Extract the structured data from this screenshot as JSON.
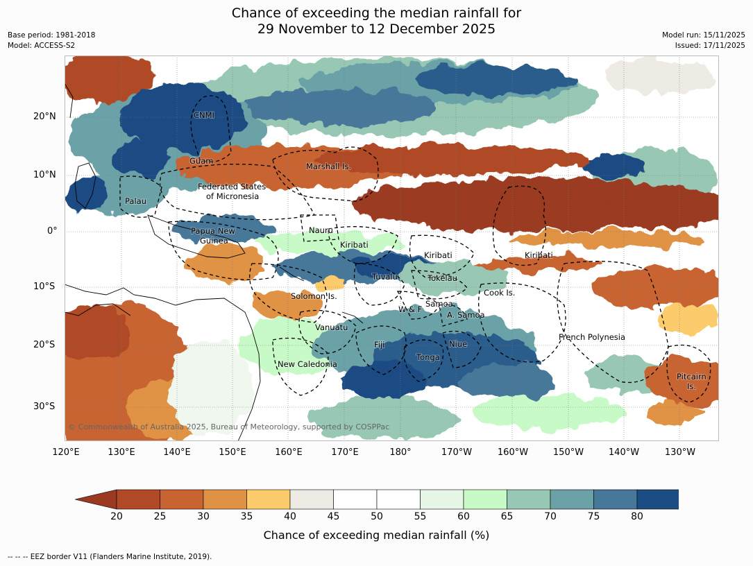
{
  "title": {
    "line1": "Chance of exceeding the median rainfall for",
    "line2": "29 November to 12 December 2025"
  },
  "meta": {
    "base_period": "Base period: 1981-2018",
    "model": "Model: ACCESS-S2",
    "model_run": "Model run: 15/11/2025",
    "issued": "Issued: 17/11/2025"
  },
  "axes": {
    "y_labels": [
      "20°N",
      "10°N",
      "0°",
      "10°S",
      "20°S",
      "30°S"
    ],
    "x_labels": [
      "120°E",
      "130°E",
      "140°E",
      "150°E",
      "160°E",
      "170°E",
      "180°",
      "170°W",
      "160°W",
      "150°W",
      "140°W",
      "130°W"
    ]
  },
  "places": {
    "cnmi": "CNMI",
    "guam": "Guam",
    "marshall": "Marshall Is.",
    "fsm1": "Federated States",
    "fsm2": "of Micronesia",
    "palau": "Palau",
    "nauru": "Nauru",
    "png1": "Papua New",
    "png2": "Guinea",
    "kiribati_w": "Kiribati",
    "kiribati_c": "Kiribati",
    "kiribati_e": "Kiribati",
    "tuvalu": "Tuvalu",
    "tokelau": "Tokelau",
    "solomon": "Solomon Is.",
    "wf": "W & F",
    "samoa": "Samoa",
    "asamoa": "A. Samoa",
    "cook": "Cook Is.",
    "vanuatu": "Vanuatu",
    "fiji": "Fiji",
    "niue": "Niue",
    "tonga": "Tonga",
    "french_polynesia": "French Polynesia",
    "new_caledonia": "New Caledonia",
    "pitcairn1": "Pitcairn",
    "pitcairn2": "Is."
  },
  "credit": "© Commonwealth of Australia 2025, Bureau of Meteorology, supported by COSPPac",
  "colorbar": {
    "ticks": [
      "20",
      "25",
      "30",
      "35",
      "40",
      "45",
      "50",
      "55",
      "60",
      "65",
      "70",
      "75",
      "80"
    ],
    "colors": [
      "#9a3a20",
      "#b04a26",
      "#c86432",
      "#e09244",
      "#fccc6c",
      "#edebe4",
      "#ffffff",
      "#ffffff",
      "#e8f6e8",
      "#c8fac8",
      "#98c8b4",
      "#6aa2a8",
      "#46789a",
      "#1c4c84",
      "#104a84"
    ],
    "label": "Chance of exceeding median rainfall (%)"
  },
  "footnote": "--  --  -- EEZ border V11 (Flanders Marine Institute, 2019)."
}
